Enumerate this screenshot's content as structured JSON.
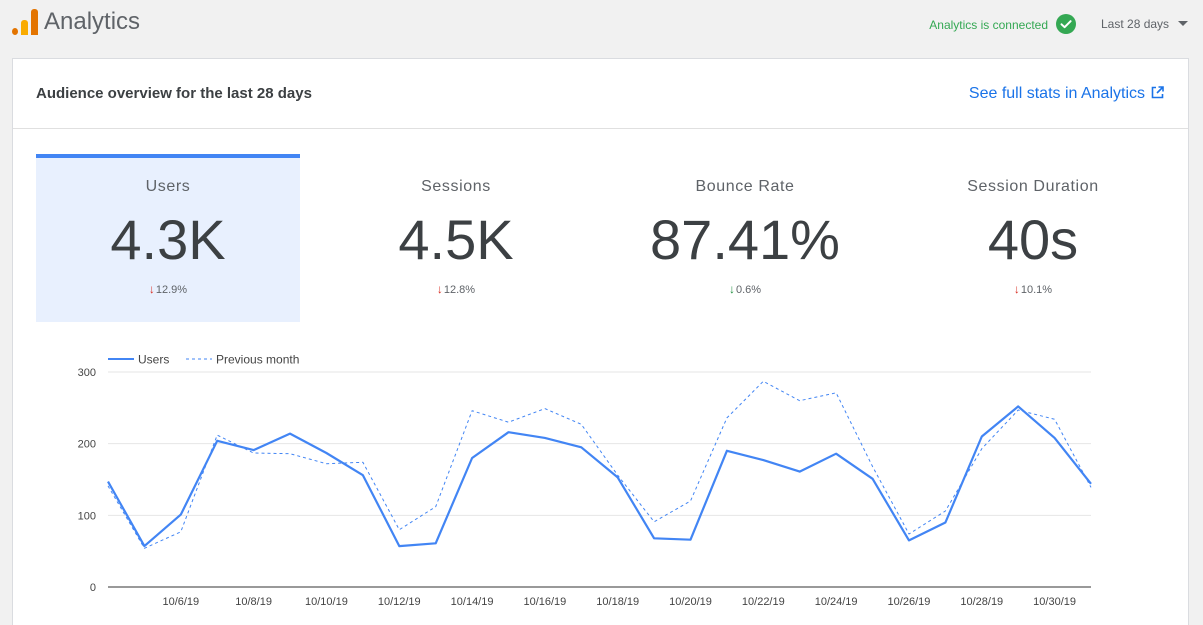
{
  "app": {
    "title": "Analytics",
    "connection_status": "Analytics is connected",
    "date_range": "Last 28 days",
    "logo_colors": [
      "#e37400",
      "#f9ab00",
      "#e37400"
    ]
  },
  "overview": {
    "title": "Audience overview for the last 28 days",
    "full_stats_link": "See full stats in Analytics"
  },
  "metrics": [
    {
      "label": "Users",
      "value": "4.3K",
      "change": "12.9%",
      "direction": "down",
      "sentiment": "bad",
      "selected": true
    },
    {
      "label": "Sessions",
      "value": "4.5K",
      "change": "12.8%",
      "direction": "down",
      "sentiment": "bad",
      "selected": false
    },
    {
      "label": "Bounce Rate",
      "value": "87.41%",
      "change": "0.6%",
      "direction": "down",
      "sentiment": "good",
      "selected": false
    },
    {
      "label": "Session Duration",
      "value": "40s",
      "change": "10.1%",
      "direction": "down",
      "sentiment": "bad",
      "selected": false
    }
  ],
  "colors": {
    "accent": "#4285f4",
    "link": "#1a73e8",
    "connected": "#34a853",
    "negative": "#d93025",
    "positive": "#1e8e3e"
  },
  "chart_data": {
    "type": "line",
    "x": [
      "10/4/19",
      "10/5/19",
      "10/6/19",
      "10/7/19",
      "10/8/19",
      "10/9/19",
      "10/10/19",
      "10/11/19",
      "10/12/19",
      "10/13/19",
      "10/14/19",
      "10/15/19",
      "10/16/19",
      "10/17/19",
      "10/18/19",
      "10/19/19",
      "10/20/19",
      "10/21/19",
      "10/22/19",
      "10/23/19",
      "10/24/19",
      "10/25/19",
      "10/26/19",
      "10/27/19",
      "10/28/19",
      "10/29/19",
      "10/30/19",
      "10/31/19"
    ],
    "x_tick_labels": [
      "10/6/19",
      "10/8/19",
      "10/10/19",
      "10/12/19",
      "10/14/19",
      "10/16/19",
      "10/18/19",
      "10/20/19",
      "10/22/19",
      "10/24/19",
      "10/26/19",
      "10/28/19",
      "10/30/19"
    ],
    "series": [
      {
        "name": "Users",
        "style": "solid",
        "color": "#4285f4",
        "values": [
          147,
          57,
          101,
          204,
          191,
          214,
          187,
          156,
          57,
          61,
          180,
          216,
          208,
          195,
          153,
          68,
          66,
          190,
          177,
          161,
          186,
          151,
          65,
          90,
          210,
          252,
          208,
          144
        ]
      },
      {
        "name": "Previous month",
        "style": "dashed",
        "color": "#4285f4",
        "values": [
          141,
          54,
          77,
          212,
          187,
          186,
          172,
          174,
          80,
          112,
          246,
          230,
          249,
          227,
          156,
          91,
          120,
          236,
          287,
          260,
          271,
          168,
          74,
          106,
          193,
          247,
          234,
          139
        ]
      }
    ],
    "y_ticks": [
      0,
      100,
      200,
      300
    ],
    "ylim": [
      0,
      300
    ],
    "grid": true,
    "legend": "top-left"
  }
}
